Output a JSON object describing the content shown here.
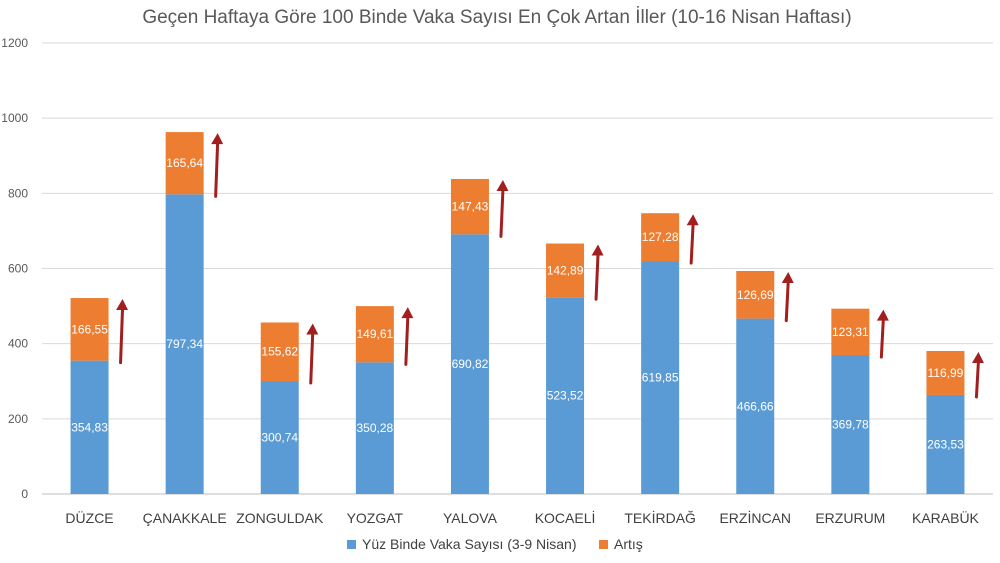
{
  "chart_data": {
    "type": "bar",
    "stacked": true,
    "title": "Geçen Haftaya Göre 100 Binde Vaka Sayısı En Çok Artan İller (10-16 Nisan Haftası)",
    "xlabel": "",
    "ylabel": "",
    "ylim": [
      0,
      1200
    ],
    "yticks": [
      0,
      200,
      400,
      600,
      800,
      1000,
      1200
    ],
    "grid": true,
    "legend": "bottom",
    "categories": [
      "DÜZCE",
      "ÇANAKKALE",
      "ZONGULDAK",
      "YOZGAT",
      "YALOVA",
      "KOCAELİ",
      "TEKİRDAĞ",
      "ERZİNCAN",
      "ERZURUM",
      "KARABÜK"
    ],
    "series": [
      {
        "name": "Yüz Binde Vaka Sayısı (3-9 Nisan)",
        "color": "#5b9bd5",
        "values": [
          354.83,
          797.34,
          300.74,
          350.28,
          690.82,
          523.52,
          619.85,
          466.66,
          369.78,
          263.53
        ],
        "labels": [
          "354,83",
          "797,34",
          "300,74",
          "350,28",
          "690,82",
          "523,52",
          "619,85",
          "466,66",
          "369,78",
          "263,53"
        ]
      },
      {
        "name": "Artış",
        "color": "#ed7d31",
        "values": [
          166.55,
          165.64,
          155.62,
          149.61,
          147.43,
          142.89,
          127.28,
          126.69,
          123.31,
          116.99
        ],
        "labels": [
          "166,55",
          "165,64",
          "155,62",
          "149,61",
          "147,43",
          "142,89",
          "127,28",
          "126,69",
          "123,31",
          "116,99"
        ]
      }
    ],
    "arrow_color": "#a11f1f",
    "grid_color": "#d9d9d9"
  }
}
